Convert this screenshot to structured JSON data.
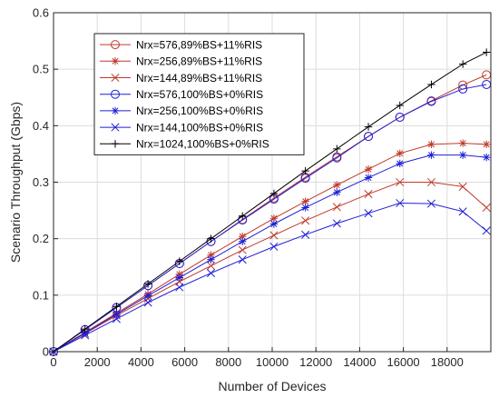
{
  "chart_data": {
    "type": "line",
    "title": "",
    "xlabel": "Number of Devices",
    "ylabel": "Scenario Throughput (Gbps)",
    "xlim": [
      0,
      20000
    ],
    "ylim": [
      0,
      0.6
    ],
    "xticks": [
      0,
      2000,
      4000,
      6000,
      8000,
      10000,
      12000,
      14000,
      16000,
      18000
    ],
    "xtick_labels": [
      "0",
      "2000",
      "4000",
      "6000",
      "8000",
      "10000",
      "12000",
      "14000",
      "16000",
      "18000"
    ],
    "yticks": [
      0,
      0.1,
      0.2,
      0.3,
      0.4,
      0.5,
      0.6
    ],
    "ytick_labels": [
      "0",
      "0.1",
      "0.2",
      "0.3",
      "0.4",
      "0.5",
      "0.6"
    ],
    "grid": true,
    "legend_position": "top-left",
    "x": [
      0,
      1440,
      2880,
      4320,
      5760,
      7200,
      8640,
      10080,
      11520,
      12960,
      14400,
      15840,
      17280,
      18720,
      19800
    ],
    "series": [
      {
        "name": "Nrx=576,89%BS+11%RIS",
        "color": "#c0392b",
        "marker": "circle",
        "values": [
          0,
          0.039,
          0.078,
          0.117,
          0.156,
          0.195,
          0.234,
          0.272,
          0.309,
          0.345,
          0.381,
          0.415,
          0.444,
          0.472,
          0.49
        ]
      },
      {
        "name": "Nrx=256,89%BS+11%RIS",
        "color": "#c0392b",
        "marker": "star",
        "values": [
          0,
          0.034,
          0.068,
          0.102,
          0.137,
          0.171,
          0.204,
          0.236,
          0.266,
          0.295,
          0.323,
          0.351,
          0.367,
          0.369,
          0.367
        ]
      },
      {
        "name": "Nrx=144,89%BS+11%RIS",
        "color": "#c0392b",
        "marker": "x",
        "values": [
          0,
          0.032,
          0.064,
          0.094,
          0.124,
          0.152,
          0.18,
          0.206,
          0.232,
          0.256,
          0.279,
          0.3,
          0.3,
          0.292,
          0.255
        ]
      },
      {
        "name": "Nrx=576,100%BS+0%RIS",
        "color": "#1f1fd6",
        "marker": "circle",
        "values": [
          0,
          0.039,
          0.078,
          0.117,
          0.156,
          0.195,
          0.233,
          0.27,
          0.307,
          0.343,
          0.381,
          0.415,
          0.443,
          0.465,
          0.473
        ]
      },
      {
        "name": "Nrx=256,100%BS+0%RIS",
        "color": "#1f1fd6",
        "marker": "star",
        "values": [
          0,
          0.033,
          0.066,
          0.099,
          0.131,
          0.163,
          0.195,
          0.226,
          0.255,
          0.282,
          0.308,
          0.333,
          0.348,
          0.348,
          0.344
        ]
      },
      {
        "name": "Nrx=144,100%BS+0%RIS",
        "color": "#1f1fd6",
        "marker": "x",
        "values": [
          0,
          0.029,
          0.058,
          0.087,
          0.114,
          0.139,
          0.163,
          0.186,
          0.207,
          0.227,
          0.245,
          0.263,
          0.262,
          0.248,
          0.214
        ]
      },
      {
        "name": "Nrx=1024,100%BS+0%RIS",
        "color": "#000000",
        "marker": "plus",
        "values": [
          0,
          0.04,
          0.08,
          0.12,
          0.16,
          0.2,
          0.24,
          0.28,
          0.32,
          0.359,
          0.398,
          0.436,
          0.473,
          0.509,
          0.53
        ]
      }
    ]
  }
}
